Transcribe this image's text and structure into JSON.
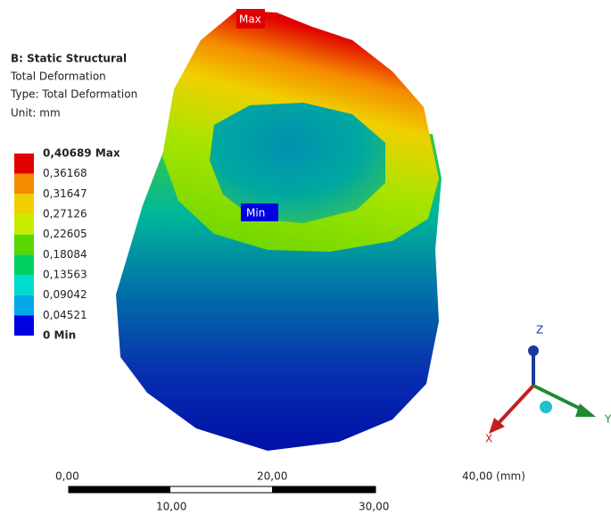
{
  "header": {
    "title": "B: Static Structural",
    "lines": [
      "Total Deformation",
      "Type: Total Deformation",
      "Unit: mm"
    ]
  },
  "legend": {
    "levels": [
      {
        "label": "0,40689 Max",
        "color": "#e00000"
      },
      {
        "label": "0,36168",
        "color": "#f58a00"
      },
      {
        "label": "0,31647",
        "color": "#f0d000"
      },
      {
        "label": "0,27126",
        "color": "#c8ec00"
      },
      {
        "label": "0,22605",
        "color": "#58d800"
      },
      {
        "label": "0,18084",
        "color": "#00d060"
      },
      {
        "label": "0,13563",
        "color": "#00dcd0"
      },
      {
        "label": "0,09042",
        "color": "#00a8e8"
      },
      {
        "label": "0,04521",
        "color": "#0000e0"
      },
      {
        "label": "0 Min"
      }
    ]
  },
  "probes": {
    "max": "Max",
    "min": "Min"
  },
  "scale_bar": {
    "top_labels": [
      "0,00",
      "20,00",
      "40,00 (mm)"
    ],
    "bottom_labels": [
      "10,00",
      "30,00"
    ]
  },
  "triad": {
    "z": "Z",
    "x": "X",
    "y": "Y"
  }
}
